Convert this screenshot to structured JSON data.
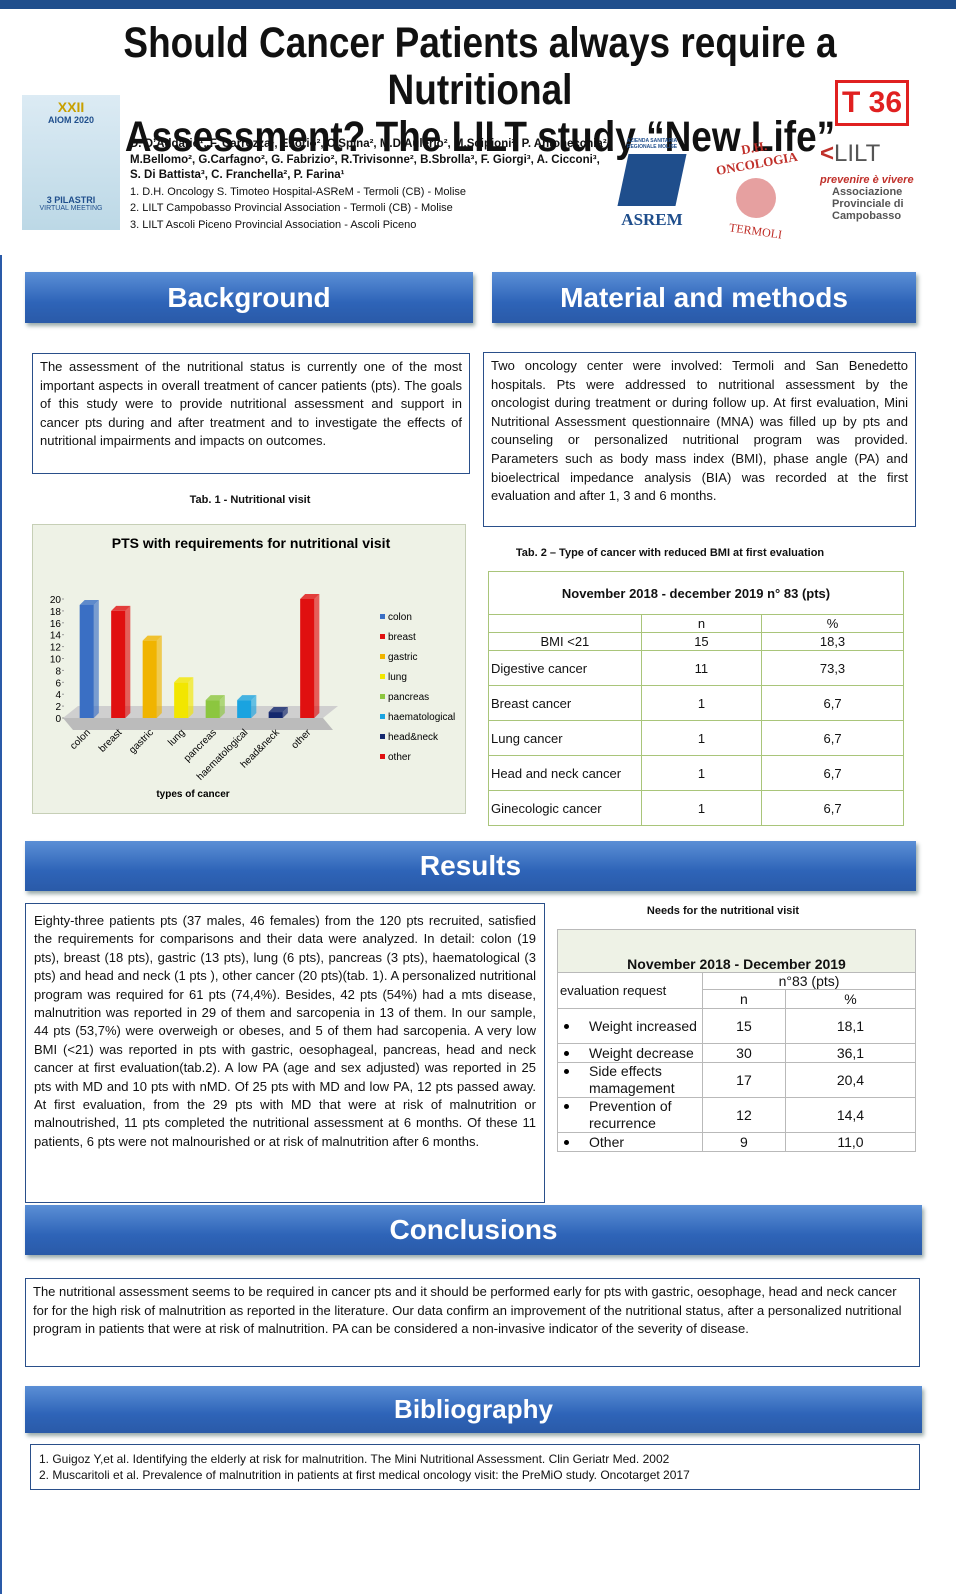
{
  "header": {
    "title_lines": [
      "Should Cancer Patients always require a Nutritional",
      "Assessment? The LILT study “New Life”"
    ],
    "code": "T 36",
    "authors": [
      "D. D’Addario¹, F. Carrozza¹, E.Iorio², C.Spina², M.D’Aulerio², M.Scipioni², P. Antonecchia²,",
      "M.Bellomo², G.Carfagno², G. Fabrizio², R.Trivisonne², B.Sbrolla³, F. Giorgi³, A. Cicconi³,",
      "S. Di Battista³, C. Franchella², P. Farina¹"
    ],
    "affiliations": [
      "1. D.H. Oncology S. Timoteo Hospital-ASReM - Termoli (CB) - Molise",
      "2. LILT Campobasso Provincial Association - Termoli  (CB) - Molise",
      "3. LILT Ascoli Piceno Provincial Association - Ascoli Piceno"
    ]
  },
  "logos": {
    "aiom": [
      "XXII",
      "AIOM 2020",
      "3 PILASTRI",
      "VIRTUAL MEETING"
    ],
    "asrem_sub": "AZIENDA SANITARIA REGIONALE MOLISE",
    "asrem": "ASREM",
    "dh": "D.H. ONCOLOGIA",
    "termoli": "TERMOLI",
    "lilt": "LILT",
    "lilt_motto": "prevenire è vivere",
    "lilt_assoc": [
      "Associazione",
      "Provinciale di",
      "Campobasso"
    ]
  },
  "background": {
    "heading": "Background",
    "text": "The assessment of the nutritional status is currently one of the most important aspects in overall treatment of cancer patients (pts). The goals of this study were to provide nutritional assessment and support in cancer pts during and after treatment and to investigate the effects of nutritional impairments and impacts on outcomes."
  },
  "methods": {
    "heading": "Material and methods",
    "text": "Two oncology center were involved: Termoli and San Benedetto hospitals. Pts were addressed to nutritional assessment by the oncologist during treatment or during follow up. At first evaluation, Mini Nutritional Assessment questionnaire (MNA) was filled up by pts and counseling or personalized nutritional program was provided. Parameters such as body mass index (BMI), phase angle (PA) and bioelectrical impedance analysis (BIA) was recorded at the first evaluation and after 1, 3 and 6 months."
  },
  "tab1_caption": "Tab. 1 - Nutritional visit",
  "chart_data": {
    "type": "bar",
    "title": "PTS with requirements for nutritional visit",
    "x_label": "types of cancer",
    "categories": [
      "colon",
      "breast",
      "gastric",
      "lung",
      "pancreas",
      "haematological",
      "head&neck",
      "other"
    ],
    "values": [
      19,
      18,
      13,
      6,
      3,
      3,
      1,
      20
    ],
    "colors": [
      "#3a6fc4",
      "#e01010",
      "#f0b400",
      "#f2e600",
      "#8cc63f",
      "#1aa3e0",
      "#14286e",
      "#e01010"
    ],
    "ylim": [
      0,
      20
    ],
    "yticks": [
      0,
      2,
      4,
      6,
      8,
      10,
      12,
      14,
      16,
      18,
      20
    ],
    "legend": "right"
  },
  "tab2": {
    "caption": "Tab. 2 – Type of cancer with reduced BMI at first evaluation",
    "period": "November 2018  - december 2019 n° 83 (pts)",
    "columns": [
      "n",
      "%"
    ],
    "rows": [
      [
        "BMI <21",
        "15",
        "18,3"
      ],
      [
        "Digestive cancer",
        "11",
        "73,3"
      ],
      [
        "Breast cancer",
        "1",
        "6,7"
      ],
      [
        "Lung cancer",
        "1",
        "6,7"
      ],
      [
        "Head and neck cancer",
        "1",
        "6,7"
      ],
      [
        "Ginecologic cancer",
        "1",
        "6,7"
      ]
    ]
  },
  "results": {
    "heading": "Results",
    "text": "Eighty-three patients pts (37 males, 46 females) from the 120 pts recruited, satisfied the requirements for comparisons and their data were analyzed. In detail: colon (19 pts), breast (18 pts), gastric (13 pts), lung (6 pts), pancreas (3 pts), haematological (3 pts) and head and neck (1 pts ), other cancer (20 pts)(tab. 1). A personalized nutritional program was required for 61 pts (74,4%). Besides, 42 pts (54%) had a mts disease, malnutrition was reported in 29 of them and sarcopenia in 13 of them. In our sample, 44 pts (53,7%) were overweigh or obeses, and 5 of them had sarcopenia. A very low BMI (<21) was reported in pts with gastric, oesophageal, pancreas, head and neck cancer at first evaluation(tab.2). A low PA (age and sex adjusted) was reported in 25 pts with MD and 10 pts with nMD. Of 25 pts with MD and low PA, 12 pts passed away. At first evaluation, from the 29 pts with MD that were at risk of malnutrition or malnoutrished, 11 pts completed the nutritional assessment at 6 months. Of these 11 patients, 6 pts were not malnourished or at risk of malnutrition after 6 months."
  },
  "needs": {
    "caption": "Needs for the nutritional visit",
    "period": "November 2018  - December 2019",
    "row_header": "evaluation request",
    "count": "n°83 (pts)",
    "columns": [
      "n",
      "%"
    ],
    "rows": [
      [
        "Weight increased",
        "15",
        "18,1"
      ],
      [
        "Weight decrease",
        "30",
        "36,1"
      ],
      [
        "Side effects mamagement",
        "17",
        "20,4"
      ],
      [
        "Prevention of recurrence",
        "12",
        "14,4"
      ],
      [
        "Other",
        "9",
        "11,0"
      ]
    ]
  },
  "conclusions": {
    "heading": "Conclusions",
    "text": "The nutritional assessment seems to be required in cancer pts and it should be performed early for pts with gastric, oesophage, head and neck cancer for for the high risk of malnutrition as reported in the literature. Our data confirm an improvement of the nutritional status, after a personalized nutritional program in patients that were at risk of malnutrition. PA can be considered a non-invasive indicator of the severity of disease."
  },
  "bibliography": {
    "heading": "Bibliography",
    "items": [
      "1. Guigoz Y,et al. Identifying the elderly at risk for malnutrition. The Mini Nutritional Assessment. Clin Geriatr Med. 2002",
      "2. Muscaritoli et al. Prevalence of malnutrition in patients at first medical oncology visit: the PreMiO study. Oncotarget 2017"
    ]
  }
}
